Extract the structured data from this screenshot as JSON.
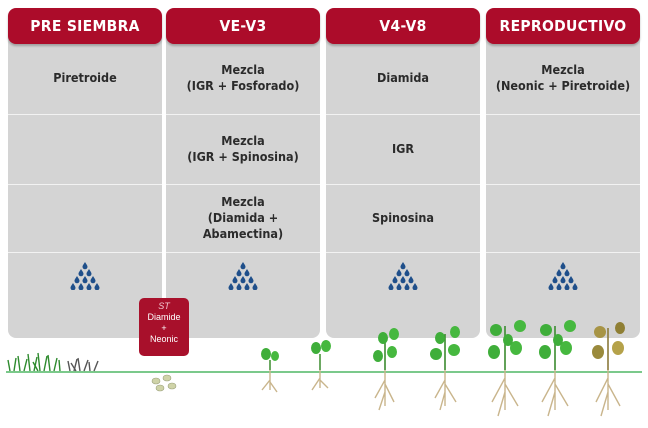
{
  "stages": [
    {
      "header": "PRE SIEMBRA",
      "cells": [
        "Piretroide",
        "",
        ""
      ]
    },
    {
      "header": "VE-V3",
      "cells": [
        "Mezcla\n(IGR + Fosforado)",
        "Mezcla\n(IGR + Spinosina)",
        "Mezcla\n(Diamida + Abamectina)"
      ]
    },
    {
      "header": "V4-V8",
      "cells": [
        "Diamida",
        "IGR",
        "Spinosina"
      ]
    },
    {
      "header": "REPRODUCTIVO",
      "cells": [
        "Mezcla\n(Neonic + Piretroide)",
        "",
        ""
      ]
    }
  ],
  "seed_treatment": {
    "tag": "ST",
    "line1": "Diamide",
    "line2": "+",
    "line3": "Neonic"
  },
  "colors": {
    "header": "#ac0c2a",
    "panel": "#d4d4d4",
    "drop": "#1f4f8a",
    "leaf": "#3fae3a",
    "root": "#c9b58c"
  },
  "icons": {
    "drops": "water-drops-icon"
  }
}
